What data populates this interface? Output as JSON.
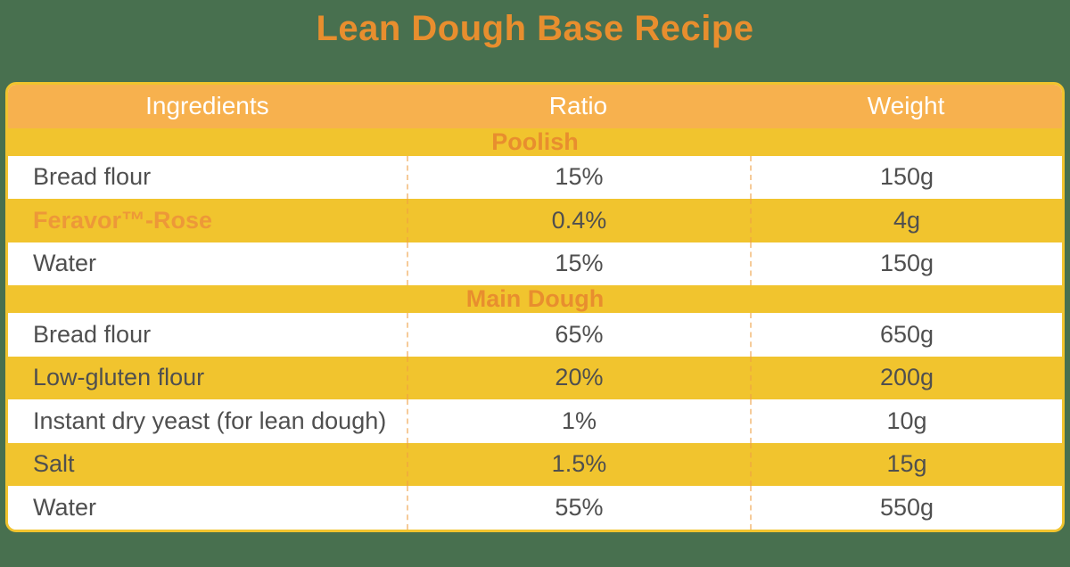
{
  "colors": {
    "page_background": "#48704F",
    "title_orange": "#E88E2E",
    "header_row_orange": "#F7B14E",
    "row_yellow": "#F1C42E",
    "section_text_orange": "#E88E2E",
    "emphasis_orange": "#ED9838",
    "data_text_gray": "#4F4F4F",
    "header_text_white": "#FFFFFF",
    "divider_dashed_orange": "#EEA046"
  },
  "chart_data": {
    "type": "table",
    "title": "Lean Dough Base Recipe",
    "columns": [
      "Ingredients",
      "Ratio",
      "Weight"
    ],
    "sections": [
      {
        "label": "Poolish",
        "rows": [
          {
            "ingredient": "Bread flour",
            "ratio": "15%",
            "weight": "150g",
            "emphasis": false
          },
          {
            "ingredient": "Feravor™-Rose",
            "ratio": "0.4%",
            "weight": "4g",
            "emphasis": true
          },
          {
            "ingredient": "Water",
            "ratio": "15%",
            "weight": "150g",
            "emphasis": false
          }
        ]
      },
      {
        "label": "Main Dough",
        "rows": [
          {
            "ingredient": "Bread flour",
            "ratio": "65%",
            "weight": "650g",
            "emphasis": false
          },
          {
            "ingredient": "Low-gluten flour",
            "ratio": "20%",
            "weight": "200g",
            "emphasis": false
          },
          {
            "ingredient": "Instant dry yeast (for lean dough)",
            "ratio": "1%",
            "weight": "10g",
            "emphasis": false
          },
          {
            "ingredient": "Salt",
            "ratio": "1.5%",
            "weight": "15g",
            "emphasis": false
          },
          {
            "ingredient": "Water",
            "ratio": "55%",
            "weight": "550g",
            "emphasis": false
          }
        ]
      }
    ]
  }
}
